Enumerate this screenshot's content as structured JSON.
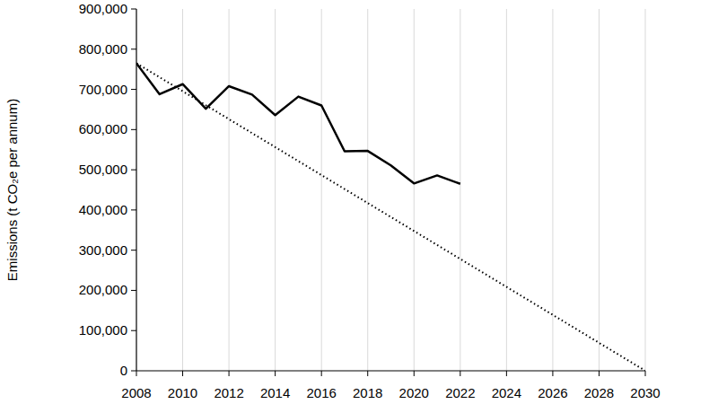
{
  "chart_data": {
    "type": "line",
    "y_label": "Emissions (t CO₂e per annum)",
    "xlim": [
      2008,
      2030
    ],
    "xticks": [
      2008,
      2010,
      2012,
      2014,
      2016,
      2018,
      2020,
      2022,
      2024,
      2026,
      2028,
      2030
    ],
    "ylim": [
      0,
      900000
    ],
    "yticks": [
      0,
      {
        "value": 100000,
        "label": "100,000"
      },
      {
        "value": 200000,
        "label": "200,000"
      },
      {
        "value": 300000,
        "label": "300,000"
      },
      {
        "value": 400000,
        "label": "400,000"
      },
      {
        "value": 500000,
        "label": "500,000"
      },
      {
        "value": 600000,
        "label": "600,000"
      },
      {
        "value": 700000,
        "label": "700,000"
      },
      {
        "value": 800000,
        "label": "800,000"
      },
      {
        "value": 900000,
        "label": "900,000"
      }
    ],
    "grid": true,
    "series": [
      {
        "color": "#000000",
        "line_style": "solid",
        "x": [
          2008,
          2009,
          2010,
          2011,
          2012,
          2013,
          2014,
          2015,
          2016,
          2017,
          2018,
          2019,
          2020,
          2021,
          2022
        ],
        "values": [
          765000,
          688000,
          713000,
          652000,
          708000,
          687000,
          636000,
          682000,
          660000,
          546000,
          547000,
          511000,
          466000,
          486000,
          465000
        ]
      },
      {
        "color": "#000000",
        "line_style": "dotted",
        "x": [
          2008,
          2030
        ],
        "values": [
          765000,
          0
        ]
      }
    ]
  }
}
